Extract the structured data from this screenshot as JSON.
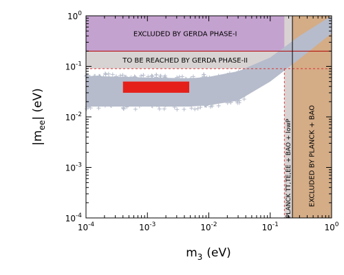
{
  "chart_data": {
    "type": "scatter",
    "xlabel": {
      "main": "m",
      "sub": "3",
      "unit": "(eV)"
    },
    "ylabel": {
      "pre": "|m",
      "sub": "ee",
      "post": "| (eV)"
    },
    "log_x": true,
    "log_y": true,
    "xlim": [
      0.0001,
      1
    ],
    "ylim": [
      0.0001,
      1
    ],
    "x_ticks": [
      {
        "value": 0.0001,
        "base": "10",
        "exp": "-4"
      },
      {
        "value": 0.001,
        "base": "10",
        "exp": "-3"
      },
      {
        "value": 0.01,
        "base": "10",
        "exp": "-2"
      },
      {
        "value": 0.1,
        "base": "10",
        "exp": "-1"
      },
      {
        "value": 1,
        "base": "10",
        "exp": "0"
      }
    ],
    "y_ticks": [
      {
        "value": 0.0001,
        "base": "10",
        "exp": "-4"
      },
      {
        "value": 0.001,
        "base": "10",
        "exp": "-3"
      },
      {
        "value": 0.01,
        "base": "10",
        "exp": "-2"
      },
      {
        "value": 0.1,
        "base": "10",
        "exp": "-1"
      },
      {
        "value": 1,
        "base": "10",
        "exp": "0"
      }
    ],
    "regions": [
      {
        "label": "EXCLUDED BY GERDA PHASE-I",
        "y_range": [
          0.2,
          1
        ],
        "x_range": [
          0.0001,
          1
        ],
        "color": "#c4a2cf"
      },
      {
        "label": "TO BE REACHED BY GERDA PHASE-II",
        "y_range": [
          0.09,
          0.2
        ],
        "x_range": [
          0.0001,
          1
        ],
        "color": "#d8d3d3"
      },
      {
        "label": "EXCLUDED BY PLANCK + BAO",
        "x_range": [
          0.23,
          1
        ],
        "y_range": [
          0.0001,
          1
        ],
        "color": "#d4ac86"
      },
      {
        "label": "PLANCK TT,TE,EE + BAO + lowP",
        "x_range": [
          0.17,
          0.23
        ],
        "y_range": [
          0.0001,
          1
        ],
        "color": "#d9d2d2"
      }
    ],
    "series": [
      {
        "color": "#b6bccb",
        "band_points": [
          {
            "x": 0.0001,
            "y_min": 0.016,
            "y_max": 0.065
          },
          {
            "x": 0.001,
            "y_min": 0.016,
            "y_max": 0.06
          },
          {
            "x": 0.005,
            "y_min": 0.016,
            "y_max": 0.058
          },
          {
            "x": 0.01,
            "y_min": 0.017,
            "y_max": 0.062
          },
          {
            "x": 0.03,
            "y_min": 0.021,
            "y_max": 0.08
          },
          {
            "x": 0.1,
            "y_min": 0.05,
            "y_max": 0.15
          },
          {
            "x": 0.3,
            "y_min": 0.14,
            "y_max": 0.4
          },
          {
            "x": 1,
            "y_min": 0.45,
            "y_max": 1
          }
        ]
      },
      {
        "color": "#e5201b",
        "rect": {
          "x_range": [
            0.0004,
            0.0048
          ],
          "y_range": [
            0.03,
            0.05
          ]
        }
      }
    ],
    "reference_lines": [
      {
        "y": 0.2,
        "x_range": [
          0.0001,
          1
        ],
        "style": "solid",
        "color": "#b00000"
      },
      {
        "y": 0.09,
        "x_range": [
          0.0001,
          1
        ],
        "style": "dashed",
        "color": "#e03030"
      },
      {
        "x": 0.23,
        "y_range": [
          0.0001,
          1
        ],
        "style": "solid",
        "color": "#000000"
      },
      {
        "x": 0.17,
        "y_range": [
          0.0001,
          0.09
        ],
        "style": "dashed",
        "color": "#e03030"
      }
    ]
  }
}
